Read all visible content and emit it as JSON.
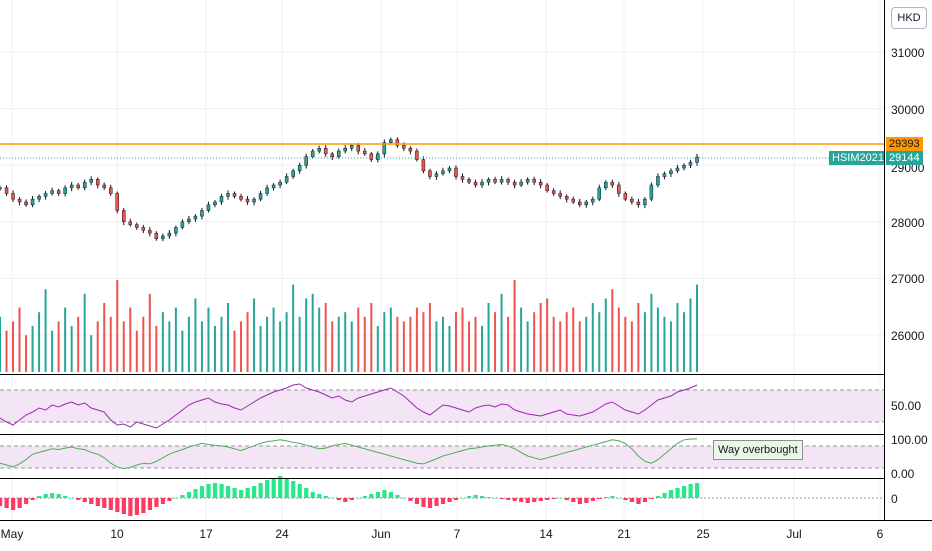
{
  "currency": "HKD",
  "symbol": "HSIM2021",
  "resistance_price": "29393",
  "last_price": "29144",
  "price_axis_ticks": [
    "31000",
    "30000",
    "29000",
    "28000",
    "27000",
    "26000"
  ],
  "rsi_axis_ticks": [
    "50.00"
  ],
  "stoch_axis_ticks": [
    "100.00",
    "0.00"
  ],
  "macd_axis_ticks": [
    "0"
  ],
  "date_axis_ticks": [
    "May",
    "10",
    "17",
    "24",
    "Jun",
    "7",
    "14",
    "21",
    "25",
    "Jul",
    "6"
  ],
  "annotation": "Way overbought",
  "colors": {
    "up": "#26a69a",
    "down": "#ef5350",
    "resistance": "#ff9800",
    "rsi_line": "#9c27b0",
    "stoch_line": "#4caf50",
    "band_fill": "#f3e5f5"
  },
  "chart_data": {
    "type": "candlestick",
    "ylim": [
      25300,
      31500
    ],
    "horizontal_lines": [
      29393
    ],
    "close": [
      28600,
      28500,
      28400,
      28350,
      28300,
      28400,
      28450,
      28500,
      28550,
      28500,
      28600,
      28650,
      28600,
      28700,
      28750,
      28650,
      28600,
      28500,
      28200,
      28000,
      27950,
      27900,
      27850,
      27800,
      27700,
      27750,
      27800,
      27900,
      28000,
      28050,
      28100,
      28200,
      28300,
      28350,
      28450,
      28500,
      28450,
      28400,
      28350,
      28400,
      28500,
      28600,
      28650,
      28700,
      28800,
      28900,
      29000,
      29150,
      29250,
      29300,
      29200,
      29150,
      29250,
      29300,
      29350,
      29250,
      29200,
      29100,
      29200,
      29400,
      29450,
      29350,
      29300,
      29250,
      29100,
      28900,
      28800,
      28850,
      28900,
      28950,
      28800,
      28750,
      28700,
      28650,
      28700,
      28750,
      28700,
      28750,
      28700,
      28650,
      28700,
      28750,
      28700,
      28650,
      28550,
      28500,
      28450,
      28400,
      28350,
      28300,
      28350,
      28400,
      28600,
      28700,
      28650,
      28500,
      28400,
      28350,
      28300,
      28400,
      28650,
      28800,
      28850,
      28900,
      28950,
      29000,
      29050,
      29144
    ],
    "volume": [
      60,
      45,
      55,
      70,
      40,
      50,
      65,
      90,
      45,
      55,
      70,
      50,
      60,
      85,
      40,
      55,
      75,
      60,
      100,
      55,
      70,
      45,
      60,
      85,
      50,
      65,
      55,
      70,
      45,
      60,
      80,
      55,
      70,
      50,
      60,
      75,
      45,
      55,
      65,
      80,
      50,
      60,
      70,
      55,
      65,
      95,
      60,
      80,
      85,
      70,
      75,
      55,
      60,
      65,
      55,
      70,
      60,
      75,
      50,
      65,
      70,
      60,
      55,
      60,
      70,
      65,
      75,
      55,
      60,
      50,
      65,
      70,
      55,
      60,
      50,
      75,
      65,
      85,
      60,
      100,
      70,
      55,
      65,
      75,
      80,
      60,
      55,
      65,
      70,
      55,
      60,
      75,
      65,
      80,
      90,
      70,
      60,
      55,
      75,
      65,
      85,
      70,
      60,
      55,
      75,
      65,
      80,
      95
    ],
    "rsi": [
      42,
      38,
      35,
      40,
      45,
      48,
      52,
      50,
      55,
      53,
      56,
      58,
      55,
      57,
      52,
      50,
      48,
      40,
      35,
      36,
      33,
      38,
      36,
      34,
      32,
      36,
      40,
      45,
      50,
      55,
      58,
      60,
      62,
      58,
      56,
      55,
      52,
      50,
      54,
      58,
      62,
      65,
      68,
      70,
      72,
      75,
      76,
      72,
      70,
      68,
      65,
      62,
      64,
      60,
      58,
      62,
      64,
      66,
      68,
      70,
      72,
      68,
      64,
      58,
      52,
      48,
      45,
      50,
      55,
      54,
      52,
      50,
      48,
      52,
      54,
      55,
      53,
      56,
      55,
      50,
      48,
      46,
      45,
      44,
      46,
      48,
      50,
      46,
      45,
      44,
      46,
      48,
      52,
      56,
      58,
      54,
      50,
      48,
      46,
      50,
      55,
      60,
      62,
      64,
      68,
      70,
      72,
      75
    ],
    "stoch": [
      30,
      25,
      20,
      28,
      40,
      55,
      60,
      65,
      70,
      68,
      72,
      75,
      70,
      68,
      60,
      55,
      45,
      30,
      20,
      15,
      18,
      25,
      30,
      28,
      35,
      45,
      55,
      62,
      68,
      75,
      80,
      85,
      82,
      80,
      78,
      75,
      70,
      65,
      72,
      78,
      85,
      90,
      92,
      95,
      92,
      88,
      85,
      80,
      75,
      70,
      72,
      78,
      82,
      85,
      80,
      75,
      70,
      65,
      60,
      55,
      50,
      45,
      40,
      35,
      30,
      28,
      35,
      42,
      50,
      55,
      60,
      65,
      70,
      72,
      75,
      78,
      80,
      82,
      78,
      70,
      60,
      50,
      45,
      40,
      45,
      50,
      55,
      60,
      65,
      70,
      75,
      80,
      85,
      90,
      95,
      92,
      85,
      70,
      50,
      35,
      30,
      40,
      55,
      70,
      85,
      95,
      97,
      98
    ],
    "macd_hist": [
      -8,
      -10,
      -12,
      -10,
      -6,
      -2,
      2,
      4,
      5,
      4,
      2,
      0,
      -2,
      -4,
      -6,
      -8,
      -10,
      -12,
      -14,
      -16,
      -18,
      -17,
      -15,
      -12,
      -9,
      -6,
      -3,
      0,
      3,
      6,
      9,
      12,
      14,
      15,
      14,
      12,
      10,
      8,
      10,
      12,
      15,
      18,
      20,
      22,
      20,
      17,
      14,
      10,
      6,
      4,
      2,
      0,
      -2,
      -4,
      -2,
      0,
      2,
      4,
      6,
      8,
      6,
      3,
      0,
      -3,
      -6,
      -9,
      -10,
      -8,
      -6,
      -4,
      -2,
      0,
      2,
      3,
      2,
      1,
      0,
      -1,
      -2,
      -3,
      -4,
      -5,
      -4,
      -3,
      -2,
      -1,
      0,
      -2,
      -4,
      -6,
      -5,
      -3,
      -1,
      1,
      2,
      0,
      -2,
      -4,
      -6,
      -4,
      -1,
      2,
      5,
      8,
      10,
      12,
      14,
      15
    ]
  }
}
